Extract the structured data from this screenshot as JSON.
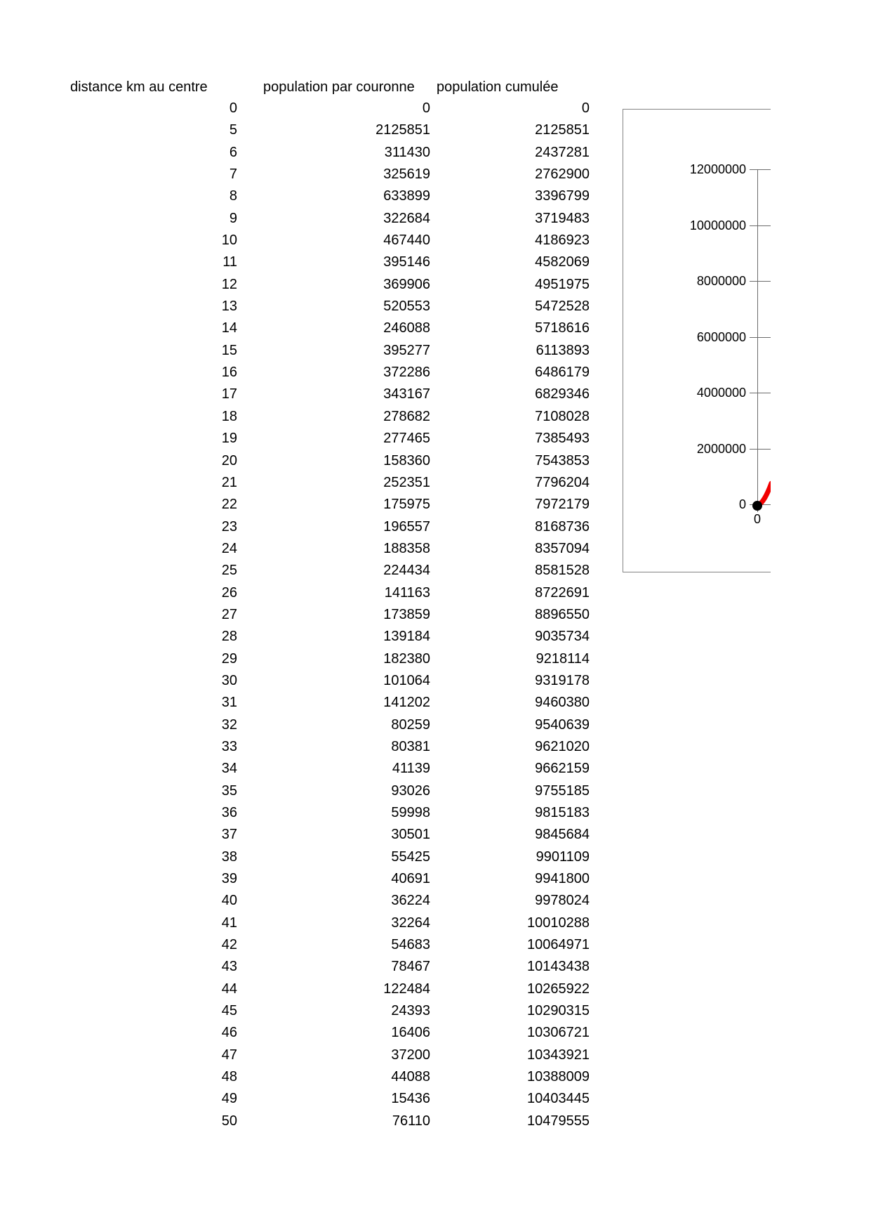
{
  "table": {
    "headers": [
      "distance km au centre",
      "population par couronne",
      "population cumulée"
    ],
    "rows": [
      [
        0,
        0,
        0
      ],
      [
        5,
        2125851,
        2125851
      ],
      [
        6,
        311430,
        2437281
      ],
      [
        7,
        325619,
        2762900
      ],
      [
        8,
        633899,
        3396799
      ],
      [
        9,
        322684,
        3719483
      ],
      [
        10,
        467440,
        4186923
      ],
      [
        11,
        395146,
        4582069
      ],
      [
        12,
        369906,
        4951975
      ],
      [
        13,
        520553,
        5472528
      ],
      [
        14,
        246088,
        5718616
      ],
      [
        15,
        395277,
        6113893
      ],
      [
        16,
        372286,
        6486179
      ],
      [
        17,
        343167,
        6829346
      ],
      [
        18,
        278682,
        7108028
      ],
      [
        19,
        277465,
        7385493
      ],
      [
        20,
        158360,
        7543853
      ],
      [
        21,
        252351,
        7796204
      ],
      [
        22,
        175975,
        7972179
      ],
      [
        23,
        196557,
        8168736
      ],
      [
        24,
        188358,
        8357094
      ],
      [
        25,
        224434,
        8581528
      ],
      [
        26,
        141163,
        8722691
      ],
      [
        27,
        173859,
        8896550
      ],
      [
        28,
        139184,
        9035734
      ],
      [
        29,
        182380,
        9218114
      ],
      [
        30,
        101064,
        9319178
      ],
      [
        31,
        141202,
        9460380
      ],
      [
        32,
        80259,
        9540639
      ],
      [
        33,
        80381,
        9621020
      ],
      [
        34,
        41139,
        9662159
      ],
      [
        35,
        93026,
        9755185
      ],
      [
        36,
        59998,
        9815183
      ],
      [
        37,
        30501,
        9845684
      ],
      [
        38,
        55425,
        9901109
      ],
      [
        39,
        40691,
        9941800
      ],
      [
        40,
        36224,
        9978024
      ],
      [
        41,
        32264,
        10010288
      ],
      [
        42,
        54683,
        10064971
      ],
      [
        43,
        78467,
        10143438
      ],
      [
        44,
        122484,
        10265922
      ],
      [
        45,
        24393,
        10290315
      ],
      [
        46,
        16406,
        10306721
      ],
      [
        47,
        37200,
        10343921
      ],
      [
        48,
        44088,
        10388009
      ],
      [
        49,
        15436,
        10403445
      ],
      [
        50,
        76110,
        10479555
      ]
    ]
  },
  "chart_data": {
    "type": "line",
    "title": "",
    "xlabel": "",
    "ylabel": "",
    "ylim": [
      0,
      12000000
    ],
    "y_ticks": [
      12000000,
      10000000,
      8000000,
      6000000,
      4000000,
      2000000,
      0
    ],
    "x_tick_label": "0",
    "grid": false,
    "legend": "none",
    "clipped_right": true,
    "marker_at_origin": true,
    "line_color": "#f20000",
    "axis_color": "#6b6b6b",
    "border_color": "#848484",
    "series": [
      {
        "name": "population cumulée",
        "x": [
          0,
          5,
          6,
          7,
          8,
          9,
          10,
          11,
          12,
          13,
          14,
          15,
          16,
          17,
          18,
          19,
          20,
          21,
          22,
          23,
          24,
          25,
          26,
          27,
          28,
          29,
          30,
          31,
          32,
          33,
          34,
          35,
          36,
          37,
          38,
          39,
          40,
          41,
          42,
          43,
          44,
          45,
          46,
          47,
          48,
          49,
          50
        ],
        "y": [
          0,
          2125851,
          2437281,
          2762900,
          3396799,
          3719483,
          4186923,
          4582069,
          4951975,
          5472528,
          5718616,
          6113893,
          6486179,
          6829346,
          7108028,
          7385493,
          7543853,
          7796204,
          7972179,
          8168736,
          8357094,
          8581528,
          8722691,
          8896550,
          9035734,
          9218114,
          9319178,
          9460380,
          9540639,
          9621020,
          9662159,
          9755185,
          9815183,
          9845684,
          9901109,
          9941800,
          9978024,
          10010288,
          10064971,
          10143438,
          10265922,
          10290315,
          10306721,
          10343921,
          10388009,
          10403445,
          10479555
        ]
      }
    ]
  }
}
